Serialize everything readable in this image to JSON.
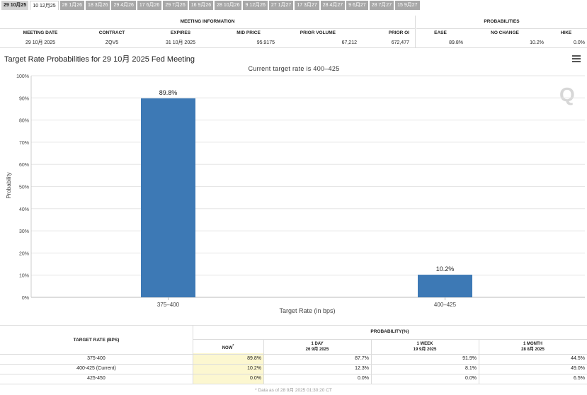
{
  "tabs": [
    "29 10月25",
    "10 12月25",
    "28 1月26",
    "18 3月26",
    "29 4月26",
    "17 6月26",
    "29 7月26",
    "16 9月26",
    "28 10月26",
    "9 12月26",
    "27 1月27",
    "17 3月27",
    "28 4月27",
    "9 6月27",
    "28 7月27",
    "15 9月27"
  ],
  "info": {
    "group_meeting": "MEETING INFORMATION",
    "group_prob": "PROBABILITIES",
    "headers": {
      "meeting_date": "MEETING DATE",
      "contract": "CONTRACT",
      "expires": "EXPIRES",
      "mid_price": "MID PRICE",
      "prior_volume": "PRIOR VOLUME",
      "prior_oi": "PRIOR OI",
      "ease": "EASE",
      "no_change": "NO CHANGE",
      "hike": "HIKE"
    },
    "values": {
      "meeting_date": "29 10月 2025",
      "contract": "ZQV5",
      "expires": "31 10月 2025",
      "mid_price": "95.9175",
      "prior_volume": "67,212",
      "prior_oi": "672,477",
      "ease": "89.8%",
      "no_change": "10.2%",
      "hike": "0.0%"
    }
  },
  "chart": {
    "title": "Target Rate Probabilities for 29 10月 2025 Fed Meeting",
    "watermark": "Q"
  },
  "chart_data": {
    "type": "bar",
    "title": "Target Rate Probabilities for 29 10月 2025 Fed Meeting",
    "subtitle": "Current target rate is 400–425",
    "categories": [
      "375–400",
      "400–425"
    ],
    "values": [
      89.8,
      10.2
    ],
    "value_labels": [
      "89.8%",
      "10.2%"
    ],
    "xlabel": "Target Rate (in bps)",
    "ylabel": "Probability",
    "ylim": [
      0,
      100
    ],
    "yticks": [
      0,
      10,
      20,
      30,
      40,
      50,
      60,
      70,
      80,
      90,
      100
    ],
    "ytick_suffix": "%",
    "grid": true,
    "bar_color": "#3d79b5"
  },
  "prob_table": {
    "col_target": "TARGET RATE (BPS)",
    "col_group": "PROBABILITY(%)",
    "col_now": "NOW",
    "now_marker": "*",
    "col_day": "1 DAY",
    "col_day_date": "26 9月 2025",
    "col_week": "1 WEEK",
    "col_week_date": "19 9月 2025",
    "col_month": "1 MONTH",
    "col_month_date": "28 8月 2025",
    "rows": [
      {
        "rate": "375-400",
        "now": "89.8%",
        "day": "87.7%",
        "week": "91.9%",
        "month": "44.5%"
      },
      {
        "rate": "400-425 (Current)",
        "now": "10.2%",
        "day": "12.3%",
        "week": "8.1%",
        "month": "49.0%"
      },
      {
        "rate": "425-450",
        "now": "0.0%",
        "day": "0.0%",
        "week": "0.0%",
        "month": "6.5%"
      }
    ],
    "footnote": "* Data as of 28 9月 2025 01:30:20 CT"
  }
}
